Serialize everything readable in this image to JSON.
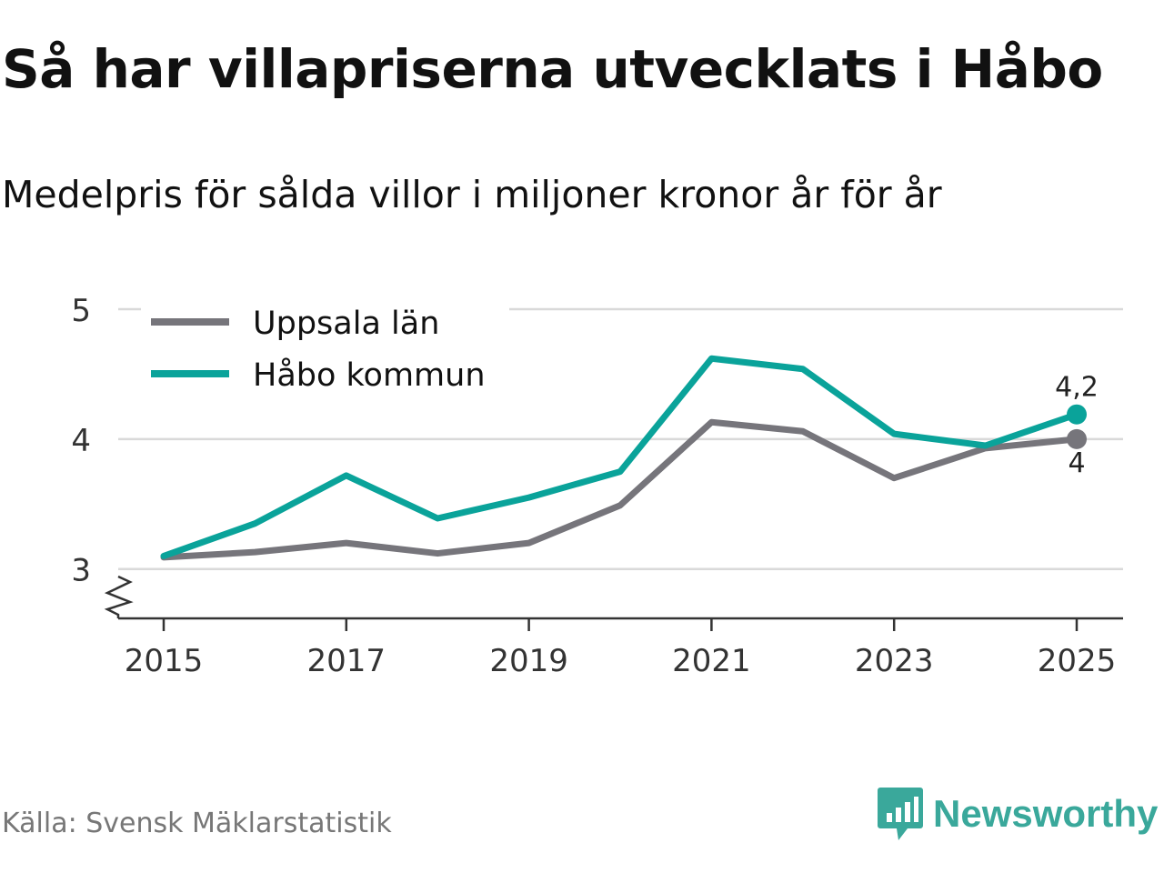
{
  "title": "Så har villapriserna utvecklats i Håbo",
  "subtitle": "Medelpris för sålda villor i miljoner kronor år för år",
  "source": "Källa: Svensk Mäklarstatistik",
  "brand": {
    "name": "Newsworthy",
    "icon": "newsworthy-logo-icon"
  },
  "colors": {
    "gray_series": "#76757b",
    "teal_series": "#0aa39a",
    "grid": "#d9d9d9",
    "brand": "#3aa89b"
  },
  "chart_data": {
    "type": "line",
    "title": "Så har villapriserna utvecklats i Håbo",
    "subtitle": "Medelpris för sålda villor i miljoner kronor år för år",
    "xlabel": "",
    "ylabel": "",
    "x": [
      2015,
      2016,
      2017,
      2018,
      2019,
      2020,
      2021,
      2022,
      2023,
      2024,
      2025
    ],
    "xticks": [
      "2015",
      "2017",
      "2019",
      "2021",
      "2023",
      "2025"
    ],
    "yticks": [
      "3",
      "4",
      "5"
    ],
    "ylim": [
      2.62,
      5
    ],
    "axis_break": true,
    "grid": true,
    "legend_position": "top-left",
    "series": [
      {
        "name": "Uppsala län",
        "color": "#76757b",
        "values": [
          3.09,
          3.13,
          3.2,
          3.12,
          3.2,
          3.49,
          4.13,
          4.06,
          3.7,
          3.93,
          4.0
        ],
        "end_label": "4"
      },
      {
        "name": "Håbo kommun",
        "color": "#0aa39a",
        "values": [
          3.1,
          3.35,
          3.72,
          3.39,
          3.55,
          3.75,
          4.62,
          4.54,
          4.04,
          3.95,
          4.19
        ],
        "end_label": "4,2"
      }
    ]
  }
}
